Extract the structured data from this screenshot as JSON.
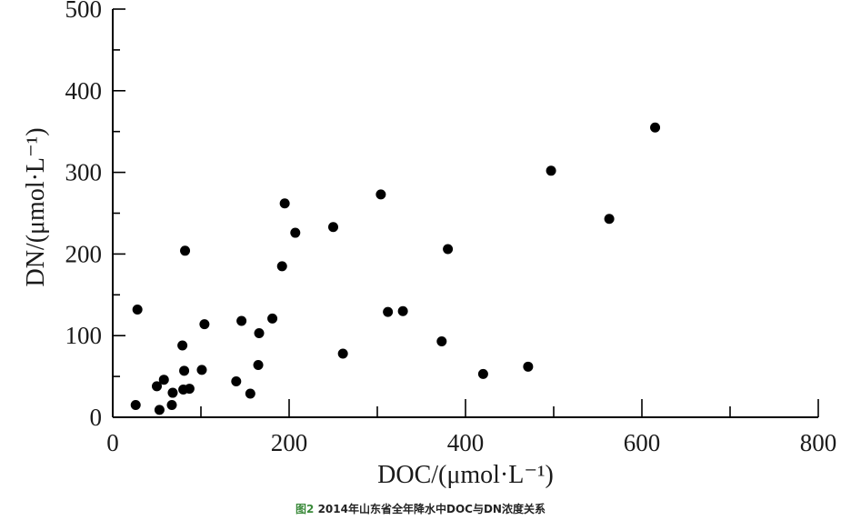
{
  "chart_data": {
    "type": "scatter",
    "xlabel": "DOC/(μmol·L⁻¹)",
    "ylabel": "DN/(μmol·L⁻¹)",
    "xlim": [
      0,
      800
    ],
    "ylim": [
      0,
      500
    ],
    "x_ticks": [
      "0",
      "200",
      "400",
      "600",
      "800"
    ],
    "y_ticks": [
      "0",
      "100",
      "200",
      "300",
      "400",
      "500"
    ],
    "grid": false,
    "legend": "none",
    "marker_color": "#000000",
    "points": [
      {
        "x": 26,
        "y": 15
      },
      {
        "x": 28,
        "y": 132
      },
      {
        "x": 50,
        "y": 38
      },
      {
        "x": 53,
        "y": 9
      },
      {
        "x": 58,
        "y": 46
      },
      {
        "x": 67,
        "y": 15
      },
      {
        "x": 68,
        "y": 30
      },
      {
        "x": 79,
        "y": 88
      },
      {
        "x": 80,
        "y": 34
      },
      {
        "x": 81,
        "y": 57
      },
      {
        "x": 82,
        "y": 204
      },
      {
        "x": 87,
        "y": 35
      },
      {
        "x": 101,
        "y": 58
      },
      {
        "x": 104,
        "y": 114
      },
      {
        "x": 140,
        "y": 44
      },
      {
        "x": 146,
        "y": 118
      },
      {
        "x": 156,
        "y": 29
      },
      {
        "x": 165,
        "y": 64
      },
      {
        "x": 166,
        "y": 103
      },
      {
        "x": 181,
        "y": 121
      },
      {
        "x": 192,
        "y": 185
      },
      {
        "x": 195,
        "y": 262
      },
      {
        "x": 207,
        "y": 226
      },
      {
        "x": 250,
        "y": 233
      },
      {
        "x": 261,
        "y": 78
      },
      {
        "x": 304,
        "y": 273
      },
      {
        "x": 312,
        "y": 129
      },
      {
        "x": 329,
        "y": 130
      },
      {
        "x": 373,
        "y": 93
      },
      {
        "x": 380,
        "y": 206
      },
      {
        "x": 420,
        "y": 53
      },
      {
        "x": 471,
        "y": 62
      },
      {
        "x": 497,
        "y": 302
      },
      {
        "x": 563,
        "y": 243
      },
      {
        "x": 615,
        "y": 355
      }
    ]
  },
  "caption": {
    "figure_number": "图2",
    "text": "2014年山东省全年降水中DOC与DN浓度关系"
  }
}
